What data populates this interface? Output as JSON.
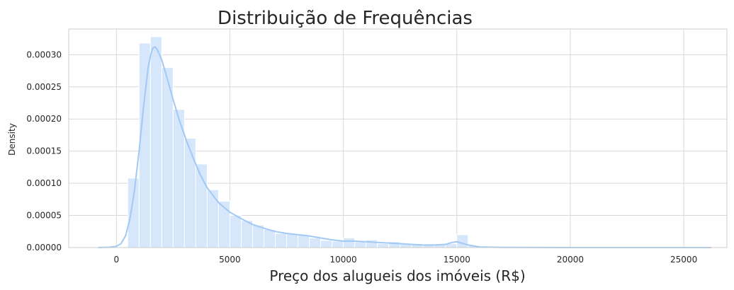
{
  "chart_data": {
    "type": "bar",
    "title": "Distribuição de Frequências",
    "xlabel": "Preço dos alugueis dos imóveis (R$)",
    "ylabel": "Density",
    "xlim": [
      -2100,
      26900
    ],
    "ylim": [
      0,
      0.00034
    ],
    "grid": true,
    "xticks": [
      0,
      5000,
      10000,
      15000,
      20000,
      25000
    ],
    "xtick_labels": [
      "0",
      "5000",
      "10000",
      "15000",
      "20000",
      "25000"
    ],
    "yticks": [
      0,
      5e-05,
      0.0001,
      0.00015,
      0.0002,
      0.00025,
      0.0003
    ],
    "ytick_labels": [
      "0.00000",
      "0.00005",
      "0.00010",
      "0.00015",
      "0.00020",
      "0.00025",
      "0.00030"
    ],
    "colors": {
      "bar": "#d6e7fb",
      "kde": "#a1c9f4",
      "grid": "#d9d9d9",
      "spine": "#cccccc",
      "text": "#262626"
    },
    "histogram": {
      "bin_edges": [
        500,
        1000,
        1500,
        2000,
        2500,
        3000,
        3500,
        4000,
        4500,
        5000,
        5500,
        6000,
        6500,
        7000,
        7500,
        8000,
        8500,
        9000,
        9500,
        10000,
        10500,
        11000,
        11500,
        12000,
        12500,
        13000,
        13500,
        14000,
        14500,
        15000,
        15500,
        16000
      ],
      "values": [
        0.000108,
        0.000318,
        0.000328,
        0.00028,
        0.000215,
        0.00017,
        0.00013,
        9e-05,
        7.2e-05,
        5e-05,
        4.2e-05,
        3.5e-05,
        2.8e-05,
        2.2e-05,
        2.2e-05,
        2e-05,
        1.5e-05,
        1.1e-05,
        1e-05,
        1.5e-05,
        9e-06,
        1.2e-05,
        6e-06,
        9e-06,
        6e-06,
        6e-06,
        5e-06,
        5e-06,
        6e-06,
        2e-05,
        3e-06
      ]
    },
    "kde": {
      "x": [
        -800,
        -300,
        0,
        200,
        400,
        600,
        800,
        1000,
        1200,
        1400,
        1500,
        1600,
        1700,
        1800,
        2000,
        2200,
        2500,
        2800,
        3100,
        3400,
        3700,
        4000,
        4500,
        5000,
        5500,
        6000,
        6500,
        7000,
        7500,
        8000,
        8500,
        9000,
        9500,
        10000,
        10500,
        11000,
        11500,
        12000,
        12500,
        13000,
        13500,
        14000,
        14500,
        14800,
        15000,
        15200,
        15500,
        16000,
        17000,
        20000,
        23000,
        26200
      ],
      "y": [
        0,
        5e-07,
        2e-06,
        6e-06,
        1.8e-05,
        4.5e-05,
        9e-05,
        0.00015,
        0.00022,
        0.00028,
        0.000298,
        0.00031,
        0.000312,
        0.000308,
        0.000292,
        0.000268,
        0.00023,
        0.000195,
        0.000165,
        0.000138,
        0.000113,
        9.3e-05,
        7e-05,
        5.5e-05,
        4.5e-05,
        3.6e-05,
        3e-05,
        2.5e-05,
        2.2e-05,
        2e-05,
        1.8e-05,
        1.5e-05,
        1.2e-05,
        1e-05,
        1e-05,
        9e-06,
        8e-06,
        7e-06,
        6e-06,
        5e-06,
        4e-06,
        4e-06,
        5e-06,
        8e-06,
        9e-06,
        7e-06,
        4e-06,
        1e-06,
        2e-07,
        0,
        0,
        0
      ]
    }
  }
}
